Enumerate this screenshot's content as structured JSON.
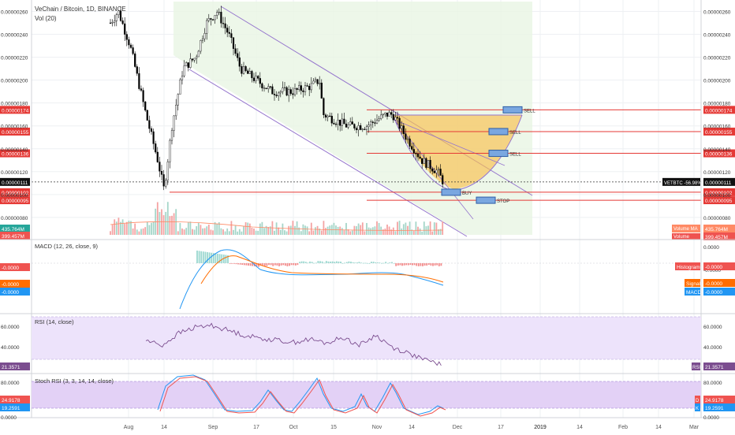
{
  "header": {
    "symbol_title": "VeChain / Bitcoin, 1D, BINANCE",
    "volume_label": "Vol (20)",
    "volume_value_left": "435.764M",
    "volume_value_left2": "399.457M",
    "volume_ma_label": "Volume MA",
    "volume_ma_value": "435.764M",
    "volume_label2": "Volume",
    "volume_value2": "399.457M"
  },
  "colors": {
    "up": "#26a69a",
    "down": "#ef5350",
    "candle": "#000000",
    "channel_fill": "#e8f5e4",
    "channel_line": "#9575cd",
    "cup_fill": "#f9c04d",
    "level_line": "#e53935",
    "macd_line": "#2196f3",
    "signal_line": "#ff6d00",
    "rsi_line": "#7b4d8f",
    "rsi_band": "#ede3fb",
    "stoch_k": "#2196f3",
    "stoch_d": "#ef5350",
    "stoch_band": "#e3d1f6"
  },
  "chart_data": {
    "type": "candlestick",
    "title": "VeChain / Bitcoin, 1D, BINANCE",
    "x_ticks": [
      "Aug",
      "14",
      "Sep",
      "17",
      "Oct",
      "15",
      "Nov",
      "14",
      "Dec",
      "17",
      "2019",
      "14",
      "Feb",
      "14",
      "Mar"
    ],
    "price_axis": {
      "ticks": [
        "0.00000260",
        "0.00000240",
        "0.00000220",
        "0.00000200",
        "0.00000180",
        "0.00000160",
        "0.00000140",
        "0.00000120",
        "0.00000100",
        "0.00000080"
      ],
      "range": [
        6.2e-07,
        2.7e-06
      ]
    },
    "price_series_approx": [
      {
        "period": "early Aug",
        "close": 2.4e-06
      },
      {
        "period": "mid Aug low",
        "close": 1.04e-06
      },
      {
        "period": "late Aug",
        "close": 2.1e-06
      },
      {
        "period": "early Sep high",
        "close": 2.6e-06
      },
      {
        "period": "late Sep",
        "close": 1.9e-06
      },
      {
        "period": "Oct",
        "close": 1.9e-06
      },
      {
        "period": "late Oct",
        "close": 1.7e-06
      },
      {
        "period": "early Nov",
        "close": 1.6e-06
      },
      {
        "period": "mid Nov",
        "close": 1.7e-06
      },
      {
        "period": "late Nov",
        "close": 1.11e-06
      }
    ],
    "levels": [
      {
        "name": "SELL",
        "price_label": "0.00000174",
        "price": 1.74e-06,
        "tag": "SELL"
      },
      {
        "name": "SELL",
        "price_label": "0.00000155",
        "price": 1.55e-06,
        "tag": "SELL"
      },
      {
        "name": "SELL",
        "price_label": "0.00000136",
        "price": 1.36e-06,
        "tag": "SELL"
      },
      {
        "name": "BUY",
        "price_label": "0.00000102",
        "price": 1.02e-06,
        "tag": "BUY"
      },
      {
        "name": "STOP",
        "price_label": "0.00000095",
        "price": 9.5e-07,
        "tag": "STOP"
      }
    ],
    "current_price": {
      "label": "0.00000111",
      "price": 1.11e-06,
      "symbol_tag": "VETBTC -56.98%"
    },
    "macd": {
      "label": "MACD (12, 26, close, 9)",
      "ticks": [
        "0.0000",
        "-0.0000",
        "-0.0000"
      ],
      "left_value": "-0.0000",
      "histogram_label": "Histogram",
      "histogram_value": "-0.0000",
      "signal_label": "Signal",
      "signal_value": "-0.0000",
      "macd_label": "MACD",
      "macd_value": "-0.0000"
    },
    "rsi": {
      "label": "RSI (14, close)",
      "ticks": [
        "60.0000",
        "40.0000"
      ],
      "value_label": "RSI",
      "value": "21.3571",
      "series_approx": [
        45,
        40,
        52,
        58,
        60,
        55,
        50,
        47,
        45,
        43,
        46,
        42,
        48,
        40,
        50,
        38,
        32,
        25,
        21.36
      ]
    },
    "stoch_rsi": {
      "label": "Stoch RSI (3, 3, 14, 14, close)",
      "ticks": [
        "80.0000",
        "40.0000",
        "0.0000"
      ],
      "k_label": "K",
      "k_value": "19.2591",
      "d_label": "D",
      "d_value": "24.9178"
    }
  }
}
